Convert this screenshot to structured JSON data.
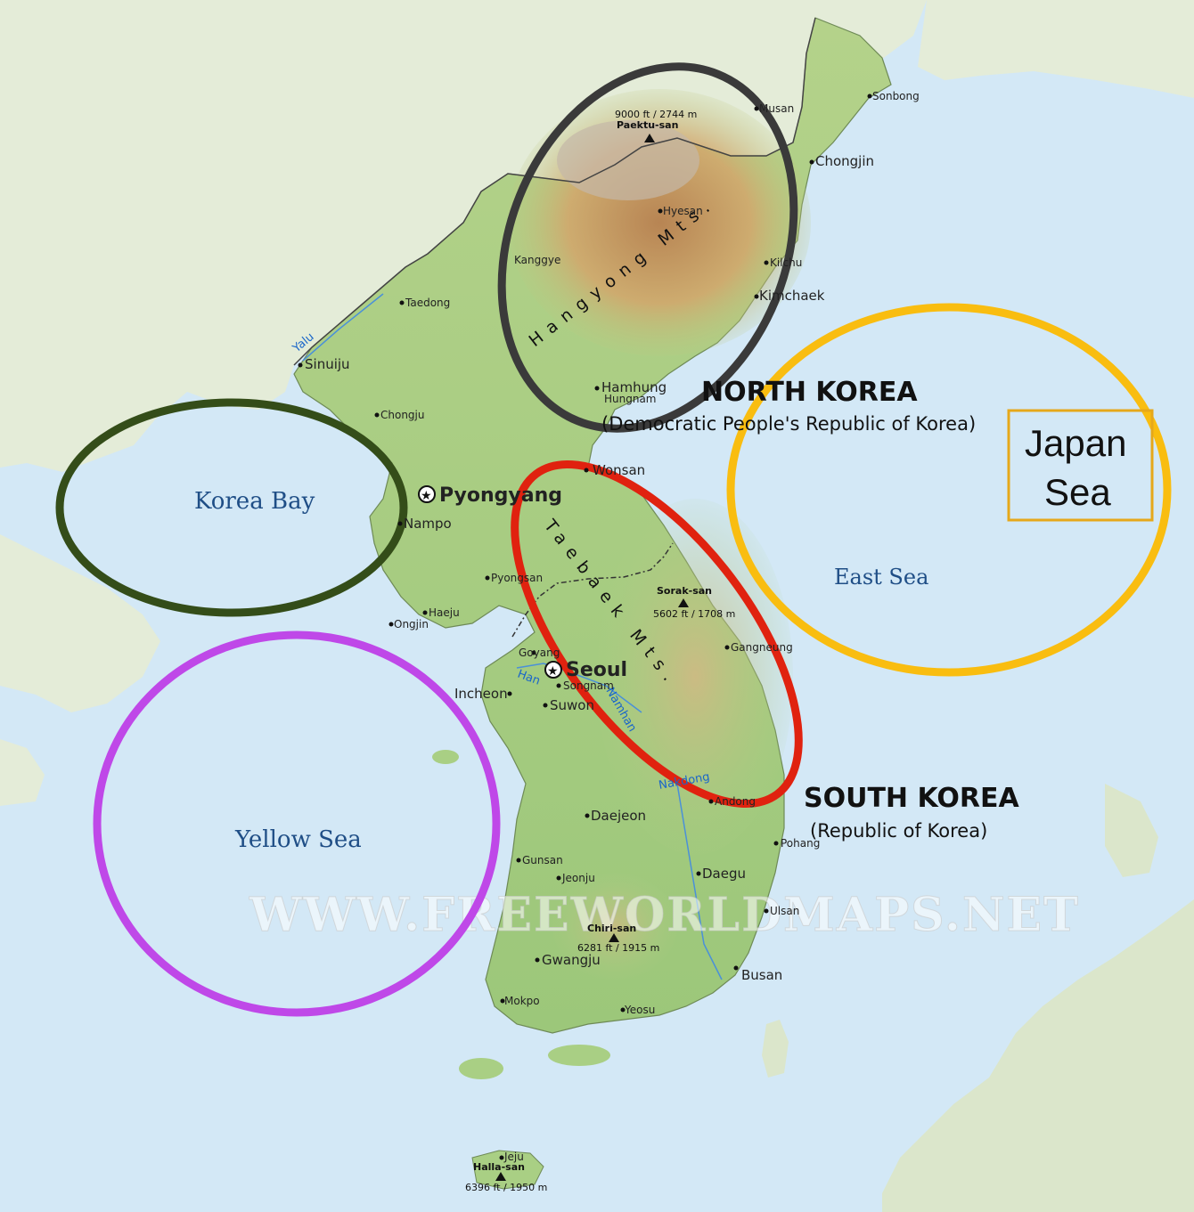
{
  "countries": {
    "north": {
      "name": "NORTH KOREA",
      "official": "(Democratic People's Republic of Korea)"
    },
    "south": {
      "name": "SOUTH KOREA",
      "official": "(Republic of Korea)"
    }
  },
  "seas": {
    "korea_bay": "Korea Bay",
    "yellow_sea": "Yellow Sea",
    "east_sea": "East Sea",
    "japan_sea_line1": "Japan",
    "japan_sea_line2": "Sea"
  },
  "capitals": [
    "Pyongyang",
    "Seoul"
  ],
  "cities": {
    "sonbong": "Sonbong",
    "musan": "Musan",
    "chongjin": "Chongjin",
    "hyesan": "Hyesan",
    "kanggye": "Kanggye",
    "kilchu": "Kilchu",
    "kimchaek": "Kimchaek",
    "taedong": "Taedong",
    "sinuiju": "Sinuiju",
    "hamhung": "Hamhung",
    "hungnam": "Hungnam",
    "chongju": "Chongju",
    "wonsan": "Wonsan",
    "nampo": "Nampo",
    "pyongsan": "Pyongsan",
    "haeju": "Haeju",
    "ongjin": "Ongjin",
    "goyang": "Goyang",
    "incheon": "Incheon",
    "songnam": "Songnam",
    "suwon": "Suwon",
    "gangneung": "Gangneung",
    "andong": "Andong",
    "daejeon": "Daejeon",
    "pohang": "Pohang",
    "gunsan": "Gunsan",
    "jeonju": "Jeonju",
    "daegu": "Daegu",
    "ulsan": "Ulsan",
    "gwangju": "Gwangju",
    "busan": "Busan",
    "mokpo": "Mokpo",
    "yeosu": "Yeosu",
    "jeju": "Jeju"
  },
  "mountains": {
    "paektu": {
      "name": "Paektu-san",
      "elev": "9000 ft / 2744 m"
    },
    "sorak": {
      "name": "Sorak-san",
      "elev": "5602 ft / 1708 m"
    },
    "chiri": {
      "name": "Chiri-san",
      "elev": "6281 ft / 1915 m"
    },
    "halla": {
      "name": "Halla-san",
      "elev": "6396 ft / 1950 m"
    }
  },
  "ranges": {
    "hangyong": "Hangyong Mts.",
    "taebaek": "Taebaek Mts."
  },
  "rivers": {
    "yalu": "Yalu",
    "han": "Han",
    "namhan": "Namhan",
    "nakdong": "Nakdong"
  },
  "watermark": "WWW.FREEWORLDMAPS.NET",
  "icons": {
    "capital": "star-in-circle-icon",
    "peak": "triangle-peak-icon",
    "city": "dot-icon"
  },
  "colors": {
    "water": "#d3e8f6",
    "land_outer": "#e4ecd8",
    "land_korea": "#a9cf84",
    "highland": "#c8965c",
    "circle_hangyong": "#3a3a3a",
    "circle_taebaek": "#e0220f",
    "circle_korea_bay": "#344d19",
    "circle_yellow_sea": "#bf48e8",
    "circle_east_sea": "#f9bd10",
    "box_japan_sea": "#e6a81a"
  }
}
